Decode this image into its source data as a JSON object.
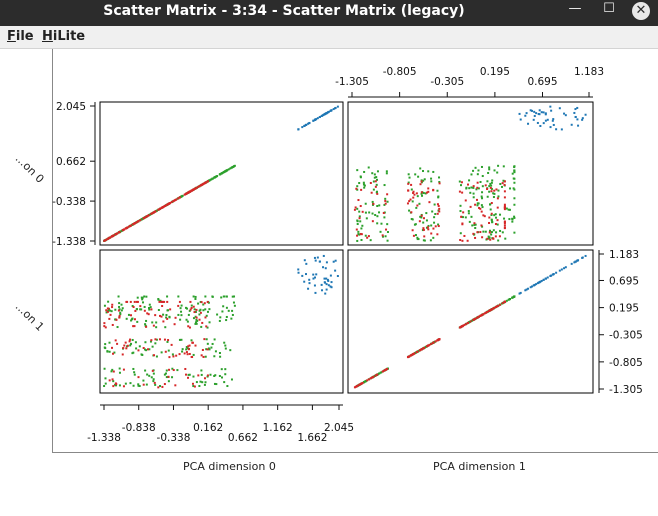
{
  "window": {
    "title": "Scatter Matrix - 3:34 - Scatter Matrix (legacy)",
    "minimize_glyph": "—",
    "maximize_glyph": "☐",
    "close_glyph": "✕"
  },
  "menu": {
    "file_underline": "F",
    "file_rest": "ile",
    "hilite_underline": "H",
    "hilite_rest": "iLite"
  },
  "axes": {
    "dim0_label": "PCA dimension 0",
    "dim1_label": "PCA dimension 1",
    "row0_label": "...on 0",
    "row1_label": "...on 1",
    "dim0_ticks_top": [
      "-1.338",
      "-0.338",
      "0.662",
      "1.662"
    ],
    "dim0_ticks_bottom": [
      "-0.838",
      "0.162",
      "1.162",
      "2.045"
    ],
    "dim0_ticks_left": [
      "2.045",
      "0.662",
      "-0.338",
      "-1.338"
    ],
    "dim1_ticks_top": [
      "-0.805",
      "0.195",
      "1.183"
    ],
    "dim1_ticks_bottom": [
      "-1.305",
      "-0.305",
      "0.695"
    ],
    "dim1_ticks_right": [
      "1.183",
      "0.695",
      "0.195",
      "-0.305",
      "-0.805",
      "-1.305"
    ]
  },
  "colors": {
    "blue": "#1f77b4",
    "green": "#2ca02c",
    "red": "#d62728",
    "frame": "#000000"
  },
  "chart_data": {
    "type": "scatter",
    "variables": [
      "PCA dimension 0",
      "PCA dimension 1"
    ],
    "ranges": {
      "dim0": [
        -1.338,
        2.045
      ],
      "dim1": [
        -1.305,
        1.183
      ]
    },
    "clusters": [
      {
        "color": "blue",
        "dim0": [
          1.45,
          2.045
        ],
        "dim1": [
          0.45,
          1.15
        ],
        "count": 45
      },
      {
        "color": "green",
        "dim0": [
          -1.338,
          0.55
        ],
        "dim1": [
          -1.25,
          0.4
        ],
        "count": 260
      },
      {
        "color": "red",
        "dim0": [
          -1.338,
          0.2
        ],
        "dim1": [
          -1.305,
          0.3
        ],
        "count": 140
      }
    ]
  }
}
